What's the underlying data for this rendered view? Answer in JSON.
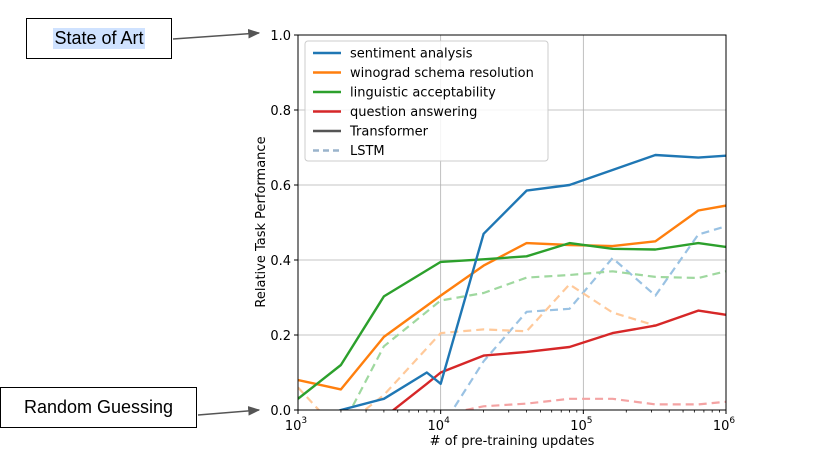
{
  "callouts": {
    "top": "State of Art",
    "bottom": "Random Guessing"
  },
  "chart_data": {
    "type": "line",
    "xlabel": "# of pre-training updates",
    "ylabel": "Relative Task Performance",
    "xscale": "log",
    "xlim": [
      1000,
      1000000
    ],
    "ylim": [
      0.0,
      1.0
    ],
    "x_ticks": [
      {
        "value": 1000,
        "base": "10",
        "exp": "3"
      },
      {
        "value": 10000,
        "base": "10",
        "exp": "4"
      },
      {
        "value": 100000,
        "base": "10",
        "exp": "5"
      },
      {
        "value": 1000000,
        "base": "10",
        "exp": "6"
      }
    ],
    "y_ticks": [
      "0.0",
      "0.2",
      "0.4",
      "0.6",
      "0.8",
      "1.0"
    ],
    "grid": true,
    "legend_position": "top-left",
    "legend": [
      {
        "label": "sentiment analysis",
        "color": "#1f77b4",
        "style": "solid"
      },
      {
        "label": "winograd schema resolution",
        "color": "#ff7f0e",
        "style": "solid"
      },
      {
        "label": "linguistic acceptability",
        "color": "#2ca02c",
        "style": "solid"
      },
      {
        "label": "question answering",
        "color": "#d62728",
        "style": "solid"
      },
      {
        "label": "Transformer",
        "color": "#555555",
        "style": "solid"
      },
      {
        "label": "LSTM",
        "color": "#9ab4cc",
        "style": "dashed"
      }
    ],
    "series": [
      {
        "task": "sentiment analysis",
        "model": "Transformer",
        "color": "#1f77b4",
        "dash": false,
        "x": [
          1000,
          2000,
          4000,
          8000,
          10000,
          20000,
          40000,
          80000,
          160000,
          320000,
          640000,
          1000000
        ],
        "y": [
          -0.04,
          0.0,
          0.03,
          0.1,
          0.07,
          0.47,
          0.585,
          0.6,
          0.64,
          0.68,
          0.673,
          0.678
        ]
      },
      {
        "task": "winograd schema resolution",
        "model": "Transformer",
        "color": "#ff7f0e",
        "dash": false,
        "x": [
          1000,
          2000,
          4000,
          10000,
          20000,
          40000,
          80000,
          160000,
          320000,
          640000,
          1000000
        ],
        "y": [
          0.08,
          0.055,
          0.195,
          0.305,
          0.385,
          0.445,
          0.44,
          0.437,
          0.45,
          0.532,
          0.545
        ]
      },
      {
        "task": "linguistic acceptability",
        "model": "Transformer",
        "color": "#2ca02c",
        "dash": false,
        "x": [
          1000,
          2000,
          4000,
          10000,
          20000,
          40000,
          80000,
          160000,
          320000,
          640000,
          1000000
        ],
        "y": [
          0.03,
          0.12,
          0.303,
          0.395,
          0.402,
          0.41,
          0.445,
          0.43,
          0.428,
          0.445,
          0.435
        ]
      },
      {
        "task": "question answering",
        "model": "Transformer",
        "color": "#d62728",
        "dash": false,
        "x": [
          4000,
          8000,
          10000,
          20000,
          40000,
          80000,
          160000,
          320000,
          640000,
          1000000
        ],
        "y": [
          -0.02,
          0.07,
          0.1,
          0.145,
          0.155,
          0.168,
          0.205,
          0.225,
          0.265,
          0.254
        ]
      },
      {
        "task": "sentiment analysis",
        "model": "LSTM",
        "color": "#9ac2e3",
        "dash": true,
        "x": [
          10000,
          20000,
          40000,
          80000,
          160000,
          320000,
          640000,
          1000000
        ],
        "y": [
          -0.05,
          0.13,
          0.262,
          0.27,
          0.405,
          0.305,
          0.468,
          0.49
        ]
      },
      {
        "task": "winograd schema resolution",
        "model": "LSTM",
        "color": "#ffc99a",
        "dash": true,
        "x": [
          1000,
          1400,
          2000,
          4000,
          10000,
          20000,
          40000,
          80000,
          160000,
          320000,
          640000,
          1000000
        ],
        "y": [
          0.06,
          0.0,
          -0.05,
          0.04,
          0.205,
          0.215,
          0.21,
          0.335,
          0.26,
          0.225,
          0.265,
          0.255
        ]
      },
      {
        "task": "linguistic acceptability",
        "model": "LSTM",
        "color": "#9fd89f",
        "dash": true,
        "x": [
          2000,
          4000,
          10000,
          20000,
          40000,
          80000,
          160000,
          320000,
          640000,
          1000000
        ],
        "y": [
          -0.05,
          0.17,
          0.292,
          0.312,
          0.353,
          0.36,
          0.37,
          0.355,
          0.352,
          0.37
        ]
      },
      {
        "task": "question answering",
        "model": "LSTM",
        "color": "#f4a3a3",
        "dash": true,
        "x": [
          15000,
          20000,
          40000,
          80000,
          160000,
          320000,
          640000,
          1000000
        ],
        "y": [
          0.0,
          0.01,
          0.017,
          0.03,
          0.03,
          0.015,
          0.015,
          0.022
        ]
      }
    ]
  }
}
